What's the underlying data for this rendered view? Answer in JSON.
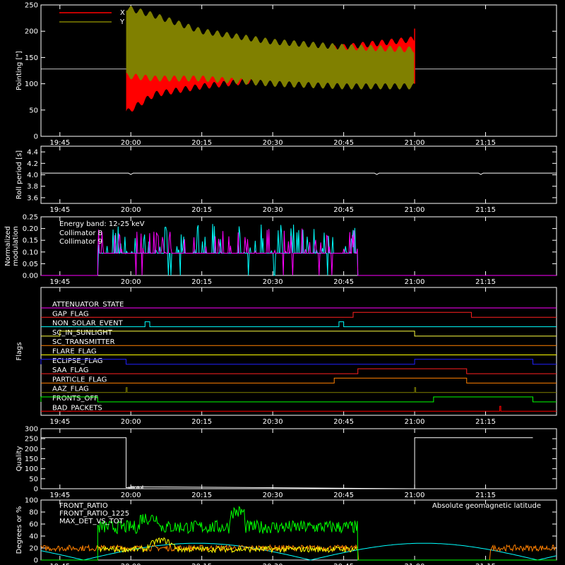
{
  "chart_data": [
    {
      "type": "line",
      "ylabel": "Pointing [\"]",
      "ylim": [
        0,
        250
      ],
      "yticks": [
        "0",
        "50",
        "100",
        "150",
        "200",
        "250"
      ],
      "xticks": [
        "19:45",
        "20:00",
        "20:15",
        "20:30",
        "20:45",
        "21:00",
        "21:15"
      ],
      "xrange_minutes": [
        1180,
        1290
      ],
      "legend_position": "top-left",
      "series": [
        {
          "name": "X",
          "color": "#ff0000",
          "t_start": "19:59",
          "t_end": "21:00",
          "envelope_time": [
            "19:59",
            "20:05",
            "20:15",
            "20:30",
            "20:45",
            "21:00"
          ],
          "envelope_low": [
            45,
            80,
            95,
            110,
            125,
            135
          ],
          "envelope_high": [
            130,
            120,
            135,
            155,
            170,
            185
          ]
        },
        {
          "name": "Y",
          "color": "#808000",
          "t_start": "19:59",
          "t_end": "21:00",
          "envelope_time": [
            "19:59",
            "20:05",
            "20:15",
            "20:30",
            "20:45",
            "21:00"
          ],
          "envelope_low": [
            115,
            110,
            110,
            100,
            95,
            95
          ],
          "envelope_high": [
            245,
            230,
            200,
            180,
            170,
            165
          ]
        }
      ],
      "reference_line": 128
    },
    {
      "type": "line",
      "ylabel": "Roll period [s]",
      "ylim": [
        3.5,
        4.5
      ],
      "yticks": [
        "3.6",
        "3.8",
        "4.0",
        "4.2",
        "4.4"
      ],
      "xticks": [
        "19:45",
        "20:00",
        "20:15",
        "20:30",
        "20:45",
        "21:00",
        "21:15"
      ],
      "series": [
        {
          "name": "",
          "color": "#ffffff",
          "value": 4.03
        }
      ]
    },
    {
      "type": "line",
      "ylabel": "Normalized modulation",
      "ylim": [
        0,
        0.25
      ],
      "yticks": [
        "0.00",
        "0.05",
        "0.10",
        "0.15",
        "0.20",
        "0.25"
      ],
      "xticks": [
        "19:45",
        "20:00",
        "20:15",
        "20:30",
        "20:45",
        "21:00",
        "21:15"
      ],
      "annotation": "Energy band: 12-25 keV",
      "series": [
        {
          "name": "Collimator 8",
          "color": "#00ffff",
          "t_start": "19:53",
          "t_end": "20:48",
          "baseline": 0.095,
          "spike_max": 0.22
        },
        {
          "name": "Collimator 9",
          "color": "#ff00ff",
          "t_start": "19:53",
          "t_end": "20:48",
          "baseline": 0.095,
          "spike_max": 0.2
        }
      ]
    },
    {
      "type": "line",
      "ylabel": "Flags",
      "xticks": [
        "19:45",
        "20:00",
        "20:15",
        "20:30",
        "20:45",
        "21:00",
        "21:15"
      ],
      "flags": [
        {
          "name": "ATTENUATOR_STATE",
          "color": "#ff00ff",
          "on": []
        },
        {
          "name": "GAP_FLAG",
          "color": "#ff2020",
          "on": [
            [
              "20:47",
              "21:12"
            ]
          ]
        },
        {
          "name": "NON_SOLAR_EVENT",
          "color": "#00ffff",
          "on": [
            [
              "20:03",
              "20:04"
            ],
            [
              "20:44",
              "20:45"
            ]
          ]
        },
        {
          "name": "SC_IN_SUNLIGHT",
          "color": "#ffff40",
          "on": [
            [
              "19:45",
              "21:00"
            ]
          ]
        },
        {
          "name": "SC_TRANSMITTER",
          "color": "#ff8000",
          "on": []
        },
        {
          "name": "FLARE_FLAG",
          "color": "#ffff00",
          "on": []
        },
        {
          "name": "ECLIPSE_FLAG",
          "color": "#2020ff",
          "on": [
            [
              "19:41",
              "19:59"
            ],
            [
              "21:00",
              "21:25"
            ]
          ]
        },
        {
          "name": "SAA_FLAG",
          "color": "#ff2020",
          "on": [
            [
              "20:48",
              "21:11"
            ]
          ]
        },
        {
          "name": "PARTICLE_FLAG",
          "color": "#ff8000",
          "on": [
            [
              "20:43",
              "21:11"
            ]
          ]
        },
        {
          "name": "AAZ_FLAG",
          "color": "#808000",
          "on": [
            [
              "19:59",
              "19:59"
            ],
            [
              "21:00",
              "21:00"
            ]
          ]
        },
        {
          "name": "FRONTS_OFF",
          "color": "#00ff00",
          "on": [
            [
              "19:41",
              "19:53"
            ],
            [
              "21:04",
              "21:25"
            ]
          ]
        },
        {
          "name": "BAD_PACKETS",
          "color": "#ff0000",
          "on": [
            [
              "21:18",
              "21:18"
            ]
          ]
        }
      ]
    },
    {
      "type": "line",
      "ylabel": "Quality",
      "ylim": [
        0,
        300
      ],
      "yticks": [
        "0",
        "50",
        "100",
        "150",
        "200",
        "250",
        "300"
      ],
      "xticks": [
        "19:45",
        "20:00",
        "20:15",
        "20:30",
        "20:45",
        "21:00",
        "21:15"
      ],
      "series": [
        {
          "name": "",
          "color": "#ffffff",
          "x": [
            "19:41",
            "19:59",
            "19:59",
            "20:01",
            "21:00",
            "21:00",
            "21:25"
          ],
          "y": [
            255,
            255,
            5,
            10,
            0,
            255,
            255
          ]
        }
      ]
    },
    {
      "type": "line",
      "ylabel": "Degrees or %",
      "ylim": [
        0,
        100
      ],
      "yticks": [
        "0",
        "20",
        "40",
        "60",
        "80",
        "100"
      ],
      "xticks": [
        "19:45",
        "20:00",
        "20:15",
        "20:30",
        "20:45",
        "21:00",
        "21:15"
      ],
      "annotation": "Absolute geomagnetic latitude",
      "series": [
        {
          "name": "FRONT_RATIO",
          "color": "#ffff00",
          "t_start": "19:53",
          "t_end": "20:48",
          "typical": 18
        },
        {
          "name": "FRONT_RATIO_1225",
          "color": "#00ff00",
          "t_start": "19:53",
          "t_end": "20:48",
          "typical": 55
        },
        {
          "name": "MAX_DET_VS_TOT",
          "color": "#ff8000",
          "t_start": "19:41",
          "t_end": "21:25",
          "typical": 20
        },
        {
          "name": "",
          "color": "#00ffff",
          "shape": "geomagnetic latitude arcs",
          "max": 28
        }
      ]
    }
  ]
}
